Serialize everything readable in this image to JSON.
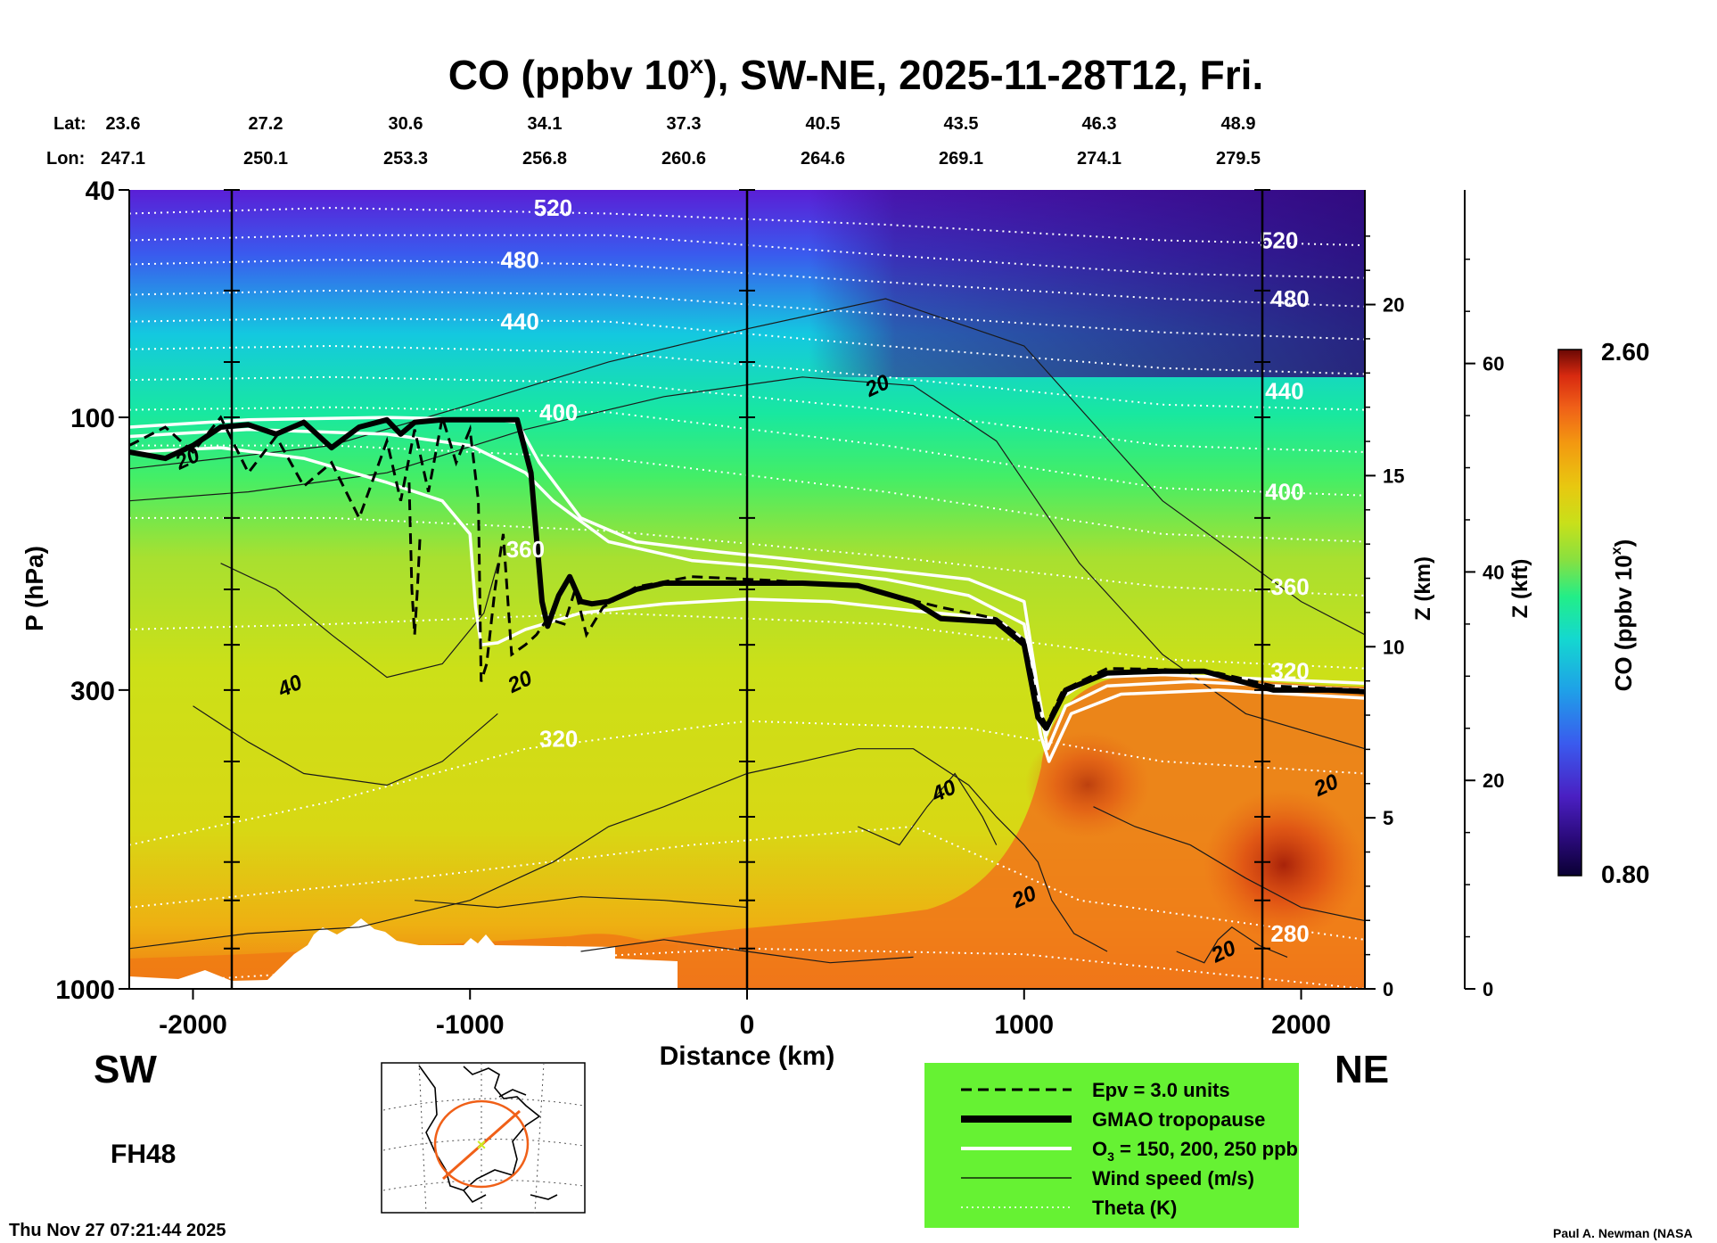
{
  "chart_data": {
    "type": "heatmap",
    "title": "CO (ppbv 10",
    "title_sup": "x",
    "title_rest": "), SW-NE, 2025-11-28T12, Fri.",
    "lat_label": "Lat:",
    "lon_label": "Lon:",
    "lat_ticks": [
      "23.6",
      "27.2",
      "30.6",
      "34.1",
      "37.3",
      "40.5",
      "43.5",
      "46.3",
      "48.9"
    ],
    "lon_ticks": [
      "247.1",
      "250.1",
      "253.3",
      "256.8",
      "260.6",
      "264.6",
      "269.1",
      "274.1",
      "279.5"
    ],
    "xlabel": "Distance (km)",
    "x_ticks": [
      -2000,
      -1000,
      0,
      1000,
      2000
    ],
    "x_tick_labels": [
      "-2000",
      "-1000",
      "0",
      "1000",
      "2000"
    ],
    "xlim": [
      -2230,
      2230
    ],
    "ylabel": "P (hPa)",
    "y_scale": "log",
    "ylim": [
      1000,
      40
    ],
    "y_ticks": [
      40,
      100,
      300,
      1000
    ],
    "y_tick_labels": [
      "40",
      "100",
      "300",
      "1000"
    ],
    "z_km_label": "Z (km)",
    "z_km_ticks": [
      0,
      5,
      10,
      15,
      20
    ],
    "z_km_tick_labels": [
      "0",
      "5",
      "10",
      "15",
      "20"
    ],
    "z_kft_label": "Z (kft)",
    "z_kft_ticks": [
      0,
      20,
      40,
      60
    ],
    "z_kft_tick_labels": [
      "0",
      "20",
      "40",
      "60"
    ],
    "colorbar": {
      "label": "CO (ppbv 10",
      "label_sup": "x",
      "label_end": ")",
      "min": 0.8,
      "max": 2.6,
      "min_label": "0.80",
      "max_label": "2.60",
      "colors": [
        "#0a0033",
        "#2a0a7a",
        "#4a1fc2",
        "#3a5aee",
        "#1f9fe8",
        "#14d8d0",
        "#22ee88",
        "#88e040",
        "#c8e01a",
        "#e8c810",
        "#f39a10",
        "#f06018",
        "#d82a10",
        "#8a0a05"
      ]
    },
    "theta_labels": [
      {
        "text": "520",
        "x": -700,
        "p": 43
      },
      {
        "text": "480",
        "x": -820,
        "p": 53
      },
      {
        "text": "440",
        "x": -820,
        "p": 68
      },
      {
        "text": "400",
        "x": -680,
        "p": 98
      },
      {
        "text": "360",
        "x": -800,
        "p": 170
      },
      {
        "text": "320",
        "x": -680,
        "p": 365
      },
      {
        "text": "520",
        "x": 1920,
        "p": 49
      },
      {
        "text": "480",
        "x": 1960,
        "p": 62
      },
      {
        "text": "440",
        "x": 1940,
        "p": 90
      },
      {
        "text": "400",
        "x": 1940,
        "p": 135
      },
      {
        "text": "360",
        "x": 1960,
        "p": 198
      },
      {
        "text": "320",
        "x": 1960,
        "p": 278
      },
      {
        "text": "280",
        "x": 1960,
        "p": 800
      }
    ],
    "wind_labels": [
      {
        "text": "20",
        "x": -2020,
        "p": 118
      },
      {
        "text": "40",
        "x": -1650,
        "p": 295
      },
      {
        "text": "20",
        "x": -820,
        "p": 290
      },
      {
        "text": "20",
        "x": 470,
        "p": 88
      },
      {
        "text": "40",
        "x": 710,
        "p": 450
      },
      {
        "text": "20",
        "x": 1000,
        "p": 690
      },
      {
        "text": "20",
        "x": 1720,
        "p": 860
      },
      {
        "text": "20",
        "x": 2090,
        "p": 440
      }
    ],
    "tropopause_pressure": [
      [
        -2230,
        115
      ],
      [
        -2100,
        118
      ],
      [
        -2000,
        112
      ],
      [
        -1900,
        104
      ],
      [
        -1800,
        103
      ],
      [
        -1700,
        107
      ],
      [
        -1600,
        102
      ],
      [
        -1500,
        113
      ],
      [
        -1400,
        104
      ],
      [
        -1300,
        101
      ],
      [
        -1250,
        107
      ],
      [
        -1200,
        102
      ],
      [
        -1100,
        101
      ],
      [
        -1000,
        101
      ],
      [
        -900,
        101
      ],
      [
        -830,
        101
      ],
      [
        -780,
        125
      ],
      [
        -740,
        210
      ],
      [
        -720,
        232
      ],
      [
        -680,
        205
      ],
      [
        -640,
        190
      ],
      [
        -600,
        210
      ],
      [
        -560,
        212
      ],
      [
        -500,
        210
      ],
      [
        -400,
        200
      ],
      [
        -300,
        195
      ],
      [
        0,
        195
      ],
      [
        200,
        195
      ],
      [
        400,
        197
      ],
      [
        600,
        210
      ],
      [
        700,
        225
      ],
      [
        900,
        228
      ],
      [
        1000,
        250
      ],
      [
        1050,
        335
      ],
      [
        1080,
        350
      ],
      [
        1150,
        300
      ],
      [
        1300,
        280
      ],
      [
        1500,
        278
      ],
      [
        1650,
        278
      ],
      [
        1750,
        287
      ],
      [
        1900,
        300
      ],
      [
        2100,
        300
      ],
      [
        2230,
        302
      ]
    ],
    "legend": {
      "items": [
        {
          "label": "Epv = 3.0 units",
          "style": "dashed"
        },
        {
          "label": "GMAO tropopause",
          "style": "thick"
        },
        {
          "label": "O",
          "sub": "3",
          "label_rest": " = 150, 200, 250 ppb",
          "style": "white"
        },
        {
          "label": "Wind speed (m/s)",
          "style": "thin"
        },
        {
          "label": "Theta (K)",
          "style": "dotted"
        }
      ],
      "background": "#66f233"
    },
    "annotations": {
      "left_dir": "SW",
      "right_dir": "NE",
      "forecast_hour": "FH48",
      "timestamp": "Thu Nov 27 07:21:44 2025",
      "credit": "Paul A. Newman (NASA"
    }
  }
}
